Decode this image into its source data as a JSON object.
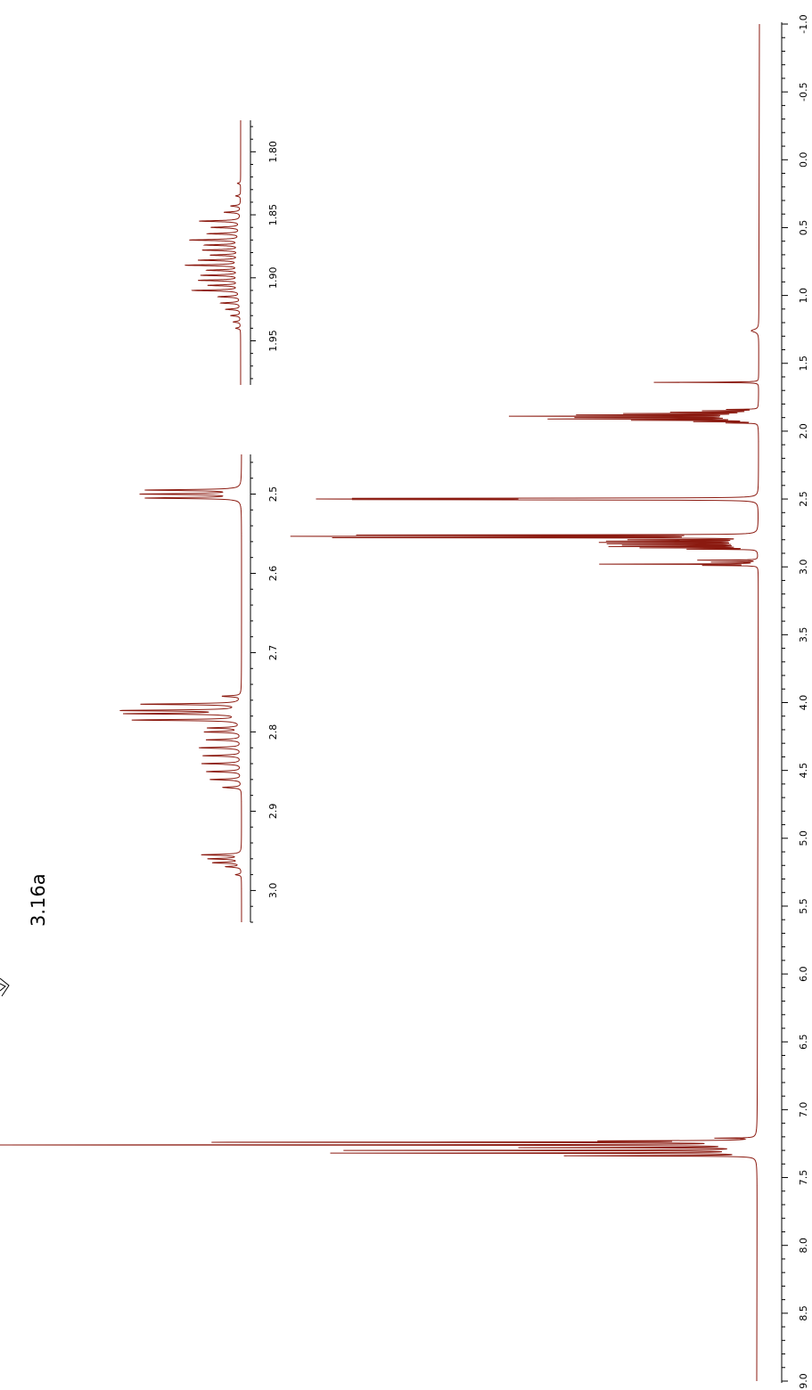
{
  "chart_data": {
    "type": "line",
    "compound_label": "3.16a",
    "orientation": "rotated 90° clockwise; chemical shift (ppm) increases top to bottom along right axis; intensity increases leftwards",
    "line_color": "#8B1A10",
    "main_axis": {
      "range_ppm": [
        -1.0,
        9.0
      ],
      "ticks": [
        "-1.0",
        "-0.5",
        "0.0",
        "0.5",
        "1.0",
        "1.5",
        "2.0",
        "2.5",
        "3.0",
        "3.5",
        "4.0",
        "4.5",
        "5.0",
        "5.5",
        "6.0",
        "6.5",
        "7.0",
        "7.5",
        "8.0",
        "8.5",
        "9.0"
      ],
      "minor_step": 0.1
    },
    "main_peaks": [
      {
        "ppm": 1.26,
        "intensity": 0.01,
        "width": 0.012
      },
      {
        "ppm": 1.64,
        "intensity": 0.14,
        "width": 0.0015
      },
      {
        "ppm": 1.84,
        "intensity": 0.04,
        "width": 0.0015
      },
      {
        "ppm": 1.85,
        "intensity": 0.07,
        "width": 0.0015
      },
      {
        "ppm": 1.86,
        "intensity": 0.11,
        "width": 0.0015
      },
      {
        "ppm": 1.87,
        "intensity": 0.17,
        "width": 0.0015
      },
      {
        "ppm": 1.88,
        "intensity": 0.23,
        "width": 0.0015
      },
      {
        "ppm": 1.89,
        "intensity": 0.32,
        "width": 0.0015
      },
      {
        "ppm": 1.9,
        "intensity": 0.23,
        "width": 0.0015
      },
      {
        "ppm": 1.91,
        "intensity": 0.27,
        "width": 0.0015
      },
      {
        "ppm": 1.92,
        "intensity": 0.16,
        "width": 0.0015
      },
      {
        "ppm": 1.93,
        "intensity": 0.08,
        "width": 0.0015
      },
      {
        "ppm": 1.94,
        "intensity": 0.04,
        "width": 0.0015
      },
      {
        "ppm": 2.495,
        "intensity": 0.49,
        "width": 0.0015
      },
      {
        "ppm": 2.5,
        "intensity": 0.51,
        "width": 0.0015
      },
      {
        "ppm": 2.505,
        "intensity": 0.49,
        "width": 0.0015
      },
      {
        "ppm": 2.765,
        "intensity": 0.52,
        "width": 0.0015
      },
      {
        "ppm": 2.775,
        "intensity": 0.6,
        "width": 0.0015
      },
      {
        "ppm": 2.785,
        "intensity": 0.55,
        "width": 0.0015
      },
      {
        "ppm": 2.8,
        "intensity": 0.16,
        "width": 0.0015
      },
      {
        "ppm": 2.81,
        "intensity": 0.19,
        "width": 0.0015
      },
      {
        "ppm": 2.82,
        "intensity": 0.2,
        "width": 0.0015
      },
      {
        "ppm": 2.83,
        "intensity": 0.19,
        "width": 0.0015
      },
      {
        "ppm": 2.84,
        "intensity": 0.17,
        "width": 0.0015
      },
      {
        "ppm": 2.85,
        "intensity": 0.19,
        "width": 0.0015
      },
      {
        "ppm": 2.86,
        "intensity": 0.15,
        "width": 0.0015
      },
      {
        "ppm": 2.87,
        "intensity": 0.09,
        "width": 0.0015
      },
      {
        "ppm": 2.95,
        "intensity": 0.08,
        "width": 0.0015
      },
      {
        "ppm": 2.965,
        "intensity": 0.06,
        "width": 0.0015
      },
      {
        "ppm": 2.98,
        "intensity": 0.21,
        "width": 0.0015
      },
      {
        "ppm": 2.99,
        "intensity": 0.07,
        "width": 0.0015
      },
      {
        "ppm": 7.21,
        "intensity": 0.05,
        "width": 0.002
      },
      {
        "ppm": 7.23,
        "intensity": 0.18,
        "width": 0.002
      },
      {
        "ppm": 7.24,
        "intensity": 0.71,
        "width": 0.002
      },
      {
        "ppm": 7.26,
        "intensity": 1.0,
        "width": 0.002
      },
      {
        "ppm": 7.28,
        "intensity": 0.3,
        "width": 0.002
      },
      {
        "ppm": 7.3,
        "intensity": 0.54,
        "width": 0.002
      },
      {
        "ppm": 7.32,
        "intensity": 0.56,
        "width": 0.002
      },
      {
        "ppm": 7.34,
        "intensity": 0.25,
        "width": 0.002
      }
    ],
    "insets": [
      {
        "name": "inset-2.5-3.0",
        "range_ppm": [
          2.45,
          3.04
        ],
        "ticks": [
          "2.5",
          "2.6",
          "2.7",
          "2.8",
          "2.9",
          "3.0"
        ],
        "peaks": [
          {
            "ppm": 2.495,
            "intensity": 0.81,
            "width": 0.0008
          },
          {
            "ppm": 2.5,
            "intensity": 0.84,
            "width": 0.0008
          },
          {
            "ppm": 2.505,
            "intensity": 0.81,
            "width": 0.0008
          },
          {
            "ppm": 2.755,
            "intensity": 0.16,
            "width": 0.0008
          },
          {
            "ppm": 2.765,
            "intensity": 0.86,
            "width": 0.0008
          },
          {
            "ppm": 2.773,
            "intensity": 1.0,
            "width": 0.0008
          },
          {
            "ppm": 2.777,
            "intensity": 0.97,
            "width": 0.0008
          },
          {
            "ppm": 2.785,
            "intensity": 0.93,
            "width": 0.0008
          },
          {
            "ppm": 2.795,
            "intensity": 0.28,
            "width": 0.0008
          },
          {
            "ppm": 2.8,
            "intensity": 0.31,
            "width": 0.0008
          },
          {
            "ppm": 2.81,
            "intensity": 0.3,
            "width": 0.0008
          },
          {
            "ppm": 2.82,
            "intensity": 0.36,
            "width": 0.0008
          },
          {
            "ppm": 2.83,
            "intensity": 0.33,
            "width": 0.0008
          },
          {
            "ppm": 2.84,
            "intensity": 0.34,
            "width": 0.0008
          },
          {
            "ppm": 2.85,
            "intensity": 0.3,
            "width": 0.0008
          },
          {
            "ppm": 2.86,
            "intensity": 0.27,
            "width": 0.0008
          },
          {
            "ppm": 2.87,
            "intensity": 0.16,
            "width": 0.0008
          },
          {
            "ppm": 2.955,
            "intensity": 0.34,
            "width": 0.0008
          },
          {
            "ppm": 2.96,
            "intensity": 0.28,
            "width": 0.0008
          },
          {
            "ppm": 2.965,
            "intensity": 0.24,
            "width": 0.0008
          },
          {
            "ppm": 2.97,
            "intensity": 0.13,
            "width": 0.0008
          },
          {
            "ppm": 2.98,
            "intensity": 0.05,
            "width": 0.0008
          }
        ]
      },
      {
        "name": "inset-1.80-1.95",
        "range_ppm": [
          1.775,
          1.985
        ],
        "ticks": [
          "1.80",
          "1.85",
          "1.90",
          "1.95"
        ],
        "peaks": [
          {
            "ppm": 1.825,
            "intensity": 0.04,
            "width": 0.0005
          },
          {
            "ppm": 1.835,
            "intensity": 0.06,
            "width": 0.0005
          },
          {
            "ppm": 1.843,
            "intensity": 0.12,
            "width": 0.0005
          },
          {
            "ppm": 1.848,
            "intensity": 0.2,
            "width": 0.0005
          },
          {
            "ppm": 1.855,
            "intensity": 0.51,
            "width": 0.0005
          },
          {
            "ppm": 1.86,
            "intensity": 0.36,
            "width": 0.0005
          },
          {
            "ppm": 1.865,
            "intensity": 0.4,
            "width": 0.0005
          },
          {
            "ppm": 1.87,
            "intensity": 0.62,
            "width": 0.0005
          },
          {
            "ppm": 1.874,
            "intensity": 0.43,
            "width": 0.0005
          },
          {
            "ppm": 1.878,
            "intensity": 0.46,
            "width": 0.0005
          },
          {
            "ppm": 1.882,
            "intensity": 0.36,
            "width": 0.0005
          },
          {
            "ppm": 1.886,
            "intensity": 0.51,
            "width": 0.0005
          },
          {
            "ppm": 1.89,
            "intensity": 0.67,
            "width": 0.0005
          },
          {
            "ppm": 1.894,
            "intensity": 0.4,
            "width": 0.0005
          },
          {
            "ppm": 1.898,
            "intensity": 0.48,
            "width": 0.0005
          },
          {
            "ppm": 1.902,
            "intensity": 0.51,
            "width": 0.0005
          },
          {
            "ppm": 1.906,
            "intensity": 0.39,
            "width": 0.0005
          },
          {
            "ppm": 1.91,
            "intensity": 0.59,
            "width": 0.0005
          },
          {
            "ppm": 1.915,
            "intensity": 0.27,
            "width": 0.0005
          },
          {
            "ppm": 1.92,
            "intensity": 0.24,
            "width": 0.0005
          },
          {
            "ppm": 1.925,
            "intensity": 0.18,
            "width": 0.0005
          },
          {
            "ppm": 1.93,
            "intensity": 0.12,
            "width": 0.0005
          },
          {
            "ppm": 1.935,
            "intensity": 0.09,
            "width": 0.0005
          },
          {
            "ppm": 1.94,
            "intensity": 0.06,
            "width": 0.0005
          }
        ]
      }
    ]
  }
}
